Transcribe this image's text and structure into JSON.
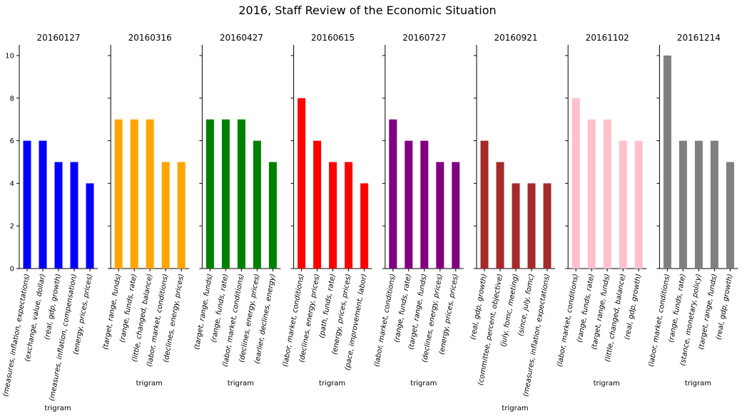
{
  "title": "2016, Staff Review of the Economic Situation",
  "chart_data": {
    "type": "bar",
    "title": "2016, Staff Review of the Economic Situation",
    "ylim": [
      0,
      10.5
    ],
    "yticks": [
      0,
      2,
      4,
      6,
      8,
      10
    ],
    "xlabel": "trigram",
    "grid": false,
    "panels": [
      {
        "title": "20160127",
        "color": "#0000ff",
        "categories": [
          "(measures, inflation, expectations)",
          "(exchange, value, dollar)",
          "(real, gdp, growth)",
          "(measures, inflation, compensation)",
          "(energy, prices, prices)"
        ],
        "values": [
          6,
          6,
          5,
          5,
          4
        ]
      },
      {
        "title": "20160316",
        "color": "#ffa500",
        "categories": [
          "(target, range, funds)",
          "(range, funds, rate)",
          "(little, changed, balance)",
          "(labor, market, conditions)",
          "(declines, energy, prices)"
        ],
        "values": [
          7,
          7,
          7,
          5,
          5
        ]
      },
      {
        "title": "20160427",
        "color": "#008000",
        "categories": [
          "(target, range, funds)",
          "(range, funds, rate)",
          "(labor, market, conditions)",
          "(declines, energy, prices)",
          "(earlier, declines, energy)"
        ],
        "values": [
          7,
          7,
          7,
          6,
          5
        ]
      },
      {
        "title": "20160615",
        "color": "#ff0000",
        "categories": [
          "(labor, market, conditions)",
          "(declines, energy, prices)",
          "(path, funds, rate)",
          "(energy, prices, prices)",
          "(pace, improvement, labor)"
        ],
        "values": [
          8,
          6,
          5,
          5,
          4
        ]
      },
      {
        "title": "20160727",
        "color": "#800080",
        "categories": [
          "(labor, market, conditions)",
          "(range, funds, rate)",
          "(target, range, funds)",
          "(declines, energy, prices)",
          "(energy, prices, prices)"
        ],
        "values": [
          7,
          6,
          6,
          5,
          5
        ]
      },
      {
        "title": "20160921",
        "color": "#a52a2a",
        "categories": [
          "(real, gdp, growth)",
          "(committee, percent, objective)",
          "(july, fomc, meeting)",
          "(since, july, fomc)",
          "(measures, inflation, expectations)"
        ],
        "values": [
          6,
          5,
          4,
          4,
          4
        ]
      },
      {
        "title": "20161102",
        "color": "#ffc0cb",
        "categories": [
          "(labor, market, conditions)",
          "(range, funds, rate)",
          "(target, range, funds)",
          "(little, changed, balance)",
          "(real, gdp, growth)"
        ],
        "values": [
          8,
          7,
          7,
          6,
          6
        ]
      },
      {
        "title": "20161214",
        "color": "#808080",
        "categories": [
          "(labor, market, conditions)",
          "(range, funds, rate)",
          "(stance, monetary, policy)",
          "(target, range, funds)",
          "(real, gdp, growth)"
        ],
        "values": [
          10,
          6,
          6,
          6,
          5
        ]
      }
    ]
  }
}
